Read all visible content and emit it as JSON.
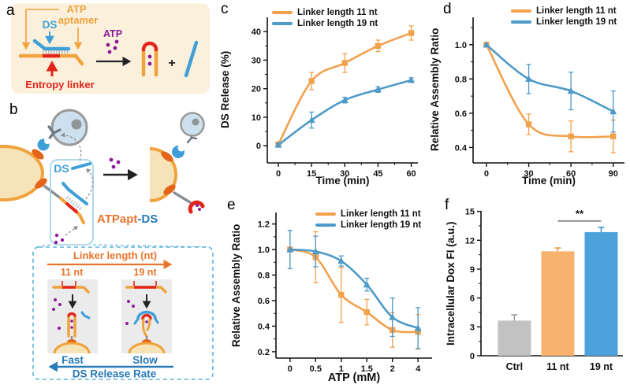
{
  "palette": {
    "series_orange": "#F2A14D",
    "series_blue": "#4E9AC8",
    "bar_gray": "#C2C2C2",
    "bar_orange": "#F7B36D",
    "bar_blue": "#4DA2DB",
    "strand_orange": "#F0A23C",
    "strand_blue": "#3F9FD8",
    "linker_red": "#E2251B",
    "atp_purple": "#8E1A9B",
    "panel_a_background": "#FAF0DC",
    "cell_fill": "#CCE0EE",
    "cell_stroke": "#9A9A9A",
    "membrane_fill": "#F6E3B8",
    "membrane_stroke": "#F0A23C",
    "receptor_orange": "#E4641A"
  },
  "panels": {
    "a": {
      "label": "a",
      "annotations": {
        "atp_aptamer_line1": "ATP",
        "atp_aptamer_line2": "aptamer",
        "ds": "DS",
        "atp": "ATP",
        "entropy_linker": "Entropy linker",
        "plus": "+"
      }
    },
    "b": {
      "label": "b",
      "annotations": {
        "ds": "DS",
        "atpapt": "ATPapt",
        "dash_ds": "-DS",
        "linker_length": "Linker length (nt)",
        "len11": "11 nt",
        "len19": "19 nt",
        "fast": "Fast",
        "slow": "Slow",
        "release_rate": "DS Release Rate"
      }
    },
    "c": {
      "label": "c"
    },
    "d": {
      "label": "d"
    },
    "e": {
      "label": "e"
    },
    "f": {
      "label": "f"
    }
  },
  "chart_data": [
    {
      "id": "c",
      "type": "line",
      "title": "",
      "xlabel": "Time (min)",
      "ylabel": "DS Release (%)",
      "x": [
        0,
        15,
        30,
        45,
        60
      ],
      "xticks": [
        0,
        15,
        30,
        45,
        60
      ],
      "xtick_labels": [
        "0",
        "15",
        "30",
        "45",
        "60"
      ],
      "xminor": [
        7.5,
        22.5,
        37.5,
        52.5
      ],
      "yticks": [
        0,
        10,
        20,
        30,
        40
      ],
      "ytick_labels": [
        "0",
        "10",
        "20",
        "30",
        "40"
      ],
      "yminor": [
        5,
        15,
        25,
        35
      ],
      "xlim": [
        -5,
        63
      ],
      "ylim": [
        -6,
        45
      ],
      "series": [
        {
          "name": "Linker length 11 nt",
          "color": "#F2A14D",
          "marker": "square",
          "values": [
            0.5,
            22.7,
            29.0,
            35.0,
            39.5
          ],
          "errors": [
            0.8,
            3.0,
            3.3,
            2.0,
            2.5
          ]
        },
        {
          "name": "Linker length 19 nt",
          "color": "#4E9AC8",
          "marker": "triangle",
          "values": [
            0.3,
            9.0,
            16.0,
            19.7,
            23.0
          ],
          "errors": [
            0.5,
            2.8,
            1.0,
            1.0,
            0.8
          ]
        }
      ],
      "layout": {
        "margins": {
          "l": 67,
          "r": 10,
          "t": 22,
          "b": 35
        },
        "legend_position": "top-left",
        "grid": false
      }
    },
    {
      "id": "d",
      "type": "line",
      "title": "",
      "xlabel": "Time (min)",
      "ylabel": "Relative Assembly Ratio",
      "x": [
        0,
        30,
        60,
        90
      ],
      "xticks": [
        0,
        30,
        60,
        90
      ],
      "xtick_labels": [
        "0",
        "30",
        "60",
        "90"
      ],
      "xminor": [
        15,
        45,
        75
      ],
      "yticks": [
        0.4,
        0.6,
        0.8,
        1.0
      ],
      "ytick_labels": [
        "0.4",
        "0.6",
        "0.8",
        "1.0"
      ],
      "yminor": [
        0.5,
        0.7,
        0.9,
        1.1
      ],
      "xlim": [
        -9.5,
        98
      ],
      "ylim": [
        0.31,
        1.16
      ],
      "series": [
        {
          "name": "Linker length 11 nt",
          "color": "#F2A14D",
          "marker": "square",
          "values": [
            1.0,
            0.535,
            0.465,
            0.465
          ],
          "errors": [
            0.015,
            0.06,
            0.09,
            0.095
          ]
        },
        {
          "name": "Linker length 19 nt",
          "color": "#4E9AC8",
          "marker": "triangle",
          "values": [
            1.0,
            0.8,
            0.73,
            0.61
          ],
          "errors": [
            0.015,
            0.085,
            0.11,
            0.12
          ]
        }
      ],
      "layout": {
        "margins": {
          "l": 60,
          "r": 7,
          "t": 22,
          "b": 35
        },
        "legend_position": "top-right",
        "grid": false
      }
    },
    {
      "id": "e",
      "type": "line",
      "title": "",
      "xlabel": "ATP (mM)",
      "ylabel": "Relative Assembly Ratio",
      "x": [
        0,
        1,
        2,
        3,
        4,
        5
      ],
      "x_value_labels": [
        "0",
        "0.5",
        "1",
        "1.5",
        "2",
        "4"
      ],
      "xticks": [
        0,
        1,
        2,
        3,
        4,
        5
      ],
      "xtick_labels": [
        "0",
        "0.5",
        "1",
        "1.5",
        "2",
        "4"
      ],
      "xminor": [],
      "yticks": [
        0.2,
        0.4,
        0.6,
        0.8,
        1.0,
        1.2
      ],
      "ytick_labels": [
        "0.2",
        "0.4",
        "0.6",
        "0.8",
        "1.0",
        "1.2"
      ],
      "yminor": [
        0.3,
        0.5,
        0.7,
        0.9,
        1.1
      ],
      "xlim": [
        -0.55,
        5.55
      ],
      "ylim": [
        0.15,
        1.29
      ],
      "series": [
        {
          "name": "Linker length 11 nt",
          "color": "#F2A14D",
          "marker": "square",
          "values": [
            1.0,
            0.94,
            0.645,
            0.51,
            0.37,
            0.355
          ],
          "errors": [
            0.15,
            0.2,
            0.215,
            0.1,
            0.135,
            0.135
          ]
        },
        {
          "name": "Linker length 19 nt",
          "color": "#4E9AC8",
          "marker": "triangle",
          "values": [
            1.0,
            0.985,
            0.91,
            0.725,
            0.47,
            0.385
          ],
          "errors": [
            0.15,
            0.12,
            0.04,
            0.05,
            0.15,
            0.16
          ]
        }
      ],
      "layout": {
        "margins": {
          "l": 62,
          "r": 14,
          "t": 26,
          "b": 38
        },
        "legend_position": "top-right",
        "grid": false
      }
    },
    {
      "id": "f",
      "type": "bar",
      "title": "",
      "xlabel": "",
      "ylabel": "Intracellular Dox FI (a.u.)",
      "categories": [
        "Ctrl",
        "11 nt",
        "19 nt"
      ],
      "values": [
        3.65,
        10.85,
        12.85
      ],
      "errors": [
        0.6,
        0.35,
        0.5
      ],
      "colors": [
        "#C2C2C2",
        "#F7B36D",
        "#4DA2DB"
      ],
      "error_colors": [
        "#999999",
        "#E8953F",
        "#2E8FC9"
      ],
      "bar_half": 21,
      "xlim": [
        -0.77,
        2.5
      ],
      "ylim": [
        0,
        15.05
      ],
      "yticks": [
        0,
        3,
        6,
        9,
        12,
        15
      ],
      "ytick_labels": [
        "0",
        "3",
        "6",
        "9",
        "12",
        "15"
      ],
      "yminor": [
        1.5,
        4.5,
        7.5,
        10.5,
        13.5
      ],
      "significance": {
        "from": 1,
        "to": 2,
        "label": "**",
        "y": 14
      },
      "layout": {
        "margins": {
          "l": 48,
          "r": 9,
          "t": 24,
          "b": 41
        },
        "grid": false
      }
    }
  ]
}
